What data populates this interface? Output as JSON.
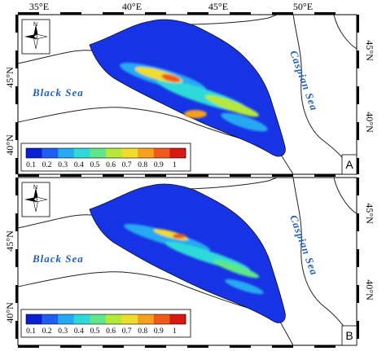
{
  "figure": {
    "top_axis_labels": [
      "35°E",
      "40°E",
      "45°E",
      "50°E"
    ],
    "panels": [
      {
        "letter": "A",
        "lat_labels": [
          "45°N",
          "40°N"
        ],
        "black_sea_label": "Black Sea",
        "caspian_sea_label": "Caspian Sea",
        "north_arrow_letter": "N",
        "legend_values": [
          "0.1",
          "0.2",
          "0.3",
          "0.4",
          "0.5",
          "0.6",
          "0.7",
          "0.8",
          "0.9",
          "1"
        ]
      },
      {
        "letter": "B",
        "lat_labels": [
          "45°N",
          "40°N"
        ],
        "black_sea_label": "Black Sea",
        "caspian_sea_label": "Caspian Sea",
        "north_arrow_letter": "N",
        "legend_values": [
          "0.1",
          "0.2",
          "0.3",
          "0.4",
          "0.5",
          "0.6",
          "0.7",
          "0.8",
          "0.9",
          "1"
        ]
      }
    ],
    "colors": {
      "region_fill": "#1733e6",
      "coast": "#222222",
      "sea_label": "#1f5fc7",
      "ramp": [
        "#0a1fd0",
        "#1e5ff0",
        "#26a9f2",
        "#2fd9d9",
        "#5ee68a",
        "#b4e83a",
        "#f0dc2a",
        "#f6a11e",
        "#ef5a1a",
        "#d61a12"
      ]
    }
  }
}
